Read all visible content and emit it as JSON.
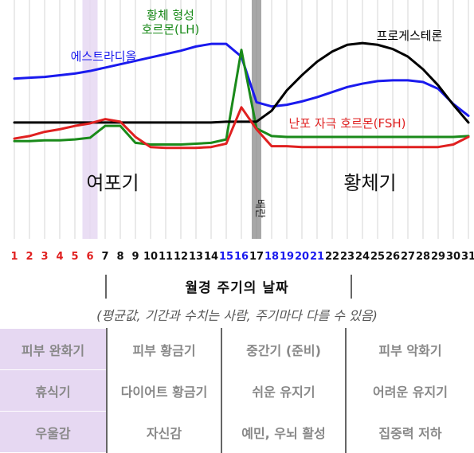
{
  "chart_data": {
    "type": "line",
    "x": [
      1,
      2,
      3,
      4,
      5,
      6,
      7,
      8,
      9,
      10,
      11,
      12,
      13,
      14,
      15,
      16,
      17,
      18,
      19,
      20,
      21,
      22,
      23,
      24,
      25,
      26,
      27,
      28,
      29,
      30,
      31
    ],
    "x_tick_labels": [
      "1",
      "2",
      "3",
      "4",
      "5",
      "6",
      "7",
      "8",
      "9",
      "10",
      "11",
      "12",
      "13",
      "14",
      "15",
      "16",
      "17",
      "18",
      "19",
      "20",
      "21",
      "22",
      "23",
      "24",
      "25",
      "26",
      "27",
      "28",
      "29",
      "30",
      "31"
    ],
    "tick_colors": {
      "red": [
        1,
        2,
        3,
        4,
        5,
        6
      ],
      "blue": [
        15,
        16,
        18,
        19,
        20,
        21
      ],
      "default": "#111111",
      "red_hex": "#e02020",
      "blue_hex": "#1a1aee"
    },
    "highlight_band_days": [
      5.5,
      6.5
    ],
    "ovulation_day": 17,
    "ovulation_label": "배란",
    "phase_labels": [
      {
        "text": "여포기",
        "day": 7.5
      },
      {
        "text": "황체기",
        "day": 24.5
      }
    ],
    "series": [
      {
        "name": "에스트라디올",
        "color": "#1a1aee",
        "values": [
          44,
          43,
          42,
          40,
          38,
          35,
          31,
          27,
          23,
          19,
          15,
          11,
          6,
          3,
          3,
          18,
          72,
          77,
          75,
          71,
          66,
          60,
          54,
          50,
          47,
          46,
          46,
          48,
          56,
          74,
          88
        ]
      },
      {
        "name": "황체 형성\n호르몬(LH)",
        "color": "#1a8a1a",
        "values": [
          118,
          118,
          117,
          117,
          116,
          114,
          100,
          100,
          120,
          122,
          122,
          122,
          121,
          120,
          116,
          10,
          103,
          112,
          113,
          113,
          113,
          113,
          113,
          113,
          113,
          113,
          113,
          113,
          113,
          113,
          112
        ]
      },
      {
        "name": "프로게스테론",
        "color": "#000000",
        "values": [
          96,
          96,
          96,
          96,
          96,
          96,
          96,
          96,
          96,
          96,
          96,
          96,
          96,
          96,
          95,
          95,
          95,
          82,
          58,
          40,
          24,
          12,
          4,
          2,
          4,
          9,
          18,
          33,
          52,
          75,
          96
        ]
      },
      {
        "name": "난포 자극 호르몬(FSH)",
        "color": "#e02020",
        "values": [
          115,
          112,
          107,
          104,
          100,
          97,
          92,
          95,
          113,
          125,
          126,
          126,
          126,
          125,
          121,
          78,
          104,
          124,
          124,
          125,
          125,
          125,
          125,
          125,
          125,
          125,
          125,
          125,
          125,
          122,
          113
        ]
      }
    ],
    "series_labels": [
      {
        "text": "에스트라디올",
        "ref": 0
      },
      {
        "text": "황체 형성\n호르몬(LH)",
        "ref": 1
      },
      {
        "text": "프로게스테론",
        "ref": 2
      },
      {
        "text": "난포 자극 호르몬(FSH)",
        "ref": 3
      }
    ],
    "yaxis": "none (relative hormone levels)",
    "ylim": [
      0,
      130
    ],
    "grid": "vertical lines at each day",
    "legend": "none; labels placed near curves"
  },
  "table": {
    "title": "월경 주기의 날짜",
    "subtitle": "(평균값, 기간과 수치는 사람, 주기마다 다를 수 있음)",
    "rows": [
      [
        "피부 완화기",
        "피부 황금기",
        "중간기 (준비)",
        "피부 악화기"
      ],
      [
        "휴식기",
        "다이어트 황금기",
        "쉬운 유지기",
        "어려운 유지기"
      ],
      [
        "우울감",
        "자신감",
        "예민, 우뇌 활성",
        "집중력 저하"
      ]
    ]
  },
  "colors": {
    "grid": "#d4d4d4",
    "highlight": "#e6d8f2",
    "ovulation_bar": "#8a8a8a"
  }
}
